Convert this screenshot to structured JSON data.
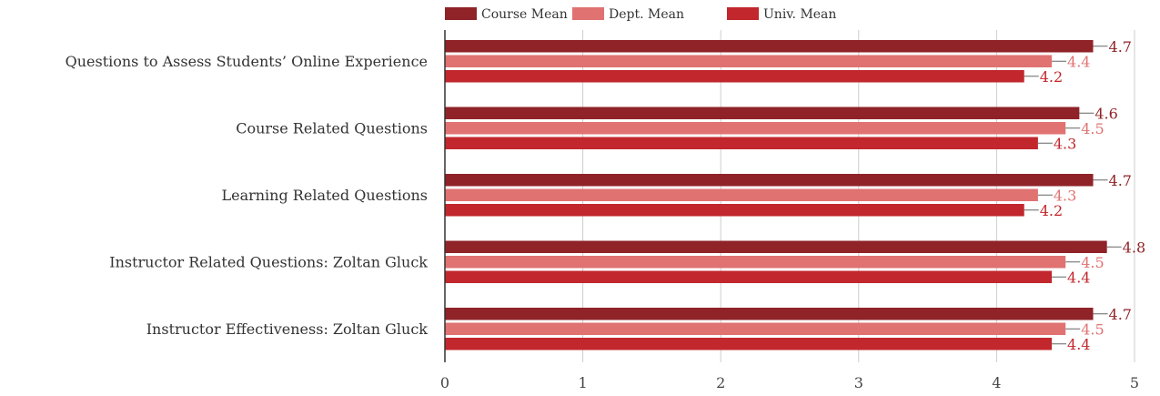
{
  "chart_data": {
    "type": "bar",
    "orientation": "horizontal",
    "categories": [
      "Questions to Assess Students’ Online Experience",
      "Course Related Questions",
      "Learning Related Questions",
      "Instructor Related Questions: Zoltan Gluck",
      "Instructor Effectiveness: Zoltan Gluck"
    ],
    "series": [
      {
        "name": "Course Mean",
        "color": "#8f2328",
        "label_color": "#8f2328",
        "values": [
          4.7,
          4.6,
          4.7,
          4.8,
          4.7
        ]
      },
      {
        "name": "Dept. Mean",
        "color": "#e07272",
        "label_color": "#e07272",
        "values": [
          4.4,
          4.5,
          4.3,
          4.5,
          4.5
        ]
      },
      {
        "name": "Univ. Mean",
        "color": "#c1272d",
        "label_color": "#c1272d",
        "values": [
          4.2,
          4.3,
          4.2,
          4.4,
          4.4
        ]
      }
    ],
    "xlim": [
      0,
      5
    ],
    "xticks": [
      "0",
      "1",
      "2",
      "3",
      "4",
      "5"
    ],
    "grid": true,
    "legend_position": "top",
    "xlabel": "",
    "ylabel": "",
    "title": ""
  }
}
